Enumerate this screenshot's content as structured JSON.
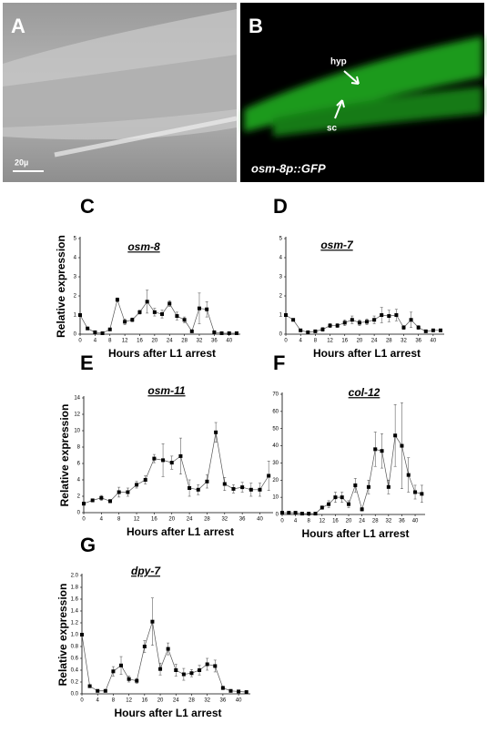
{
  "images": [
    {
      "label": "A",
      "scale_bar": "20µ"
    },
    {
      "label": "B",
      "annotations": [
        "hyp",
        "sc"
      ],
      "caption": "osm-8p::GFP"
    }
  ],
  "chart_data": [
    {
      "type": "line",
      "panel": "C",
      "title": "osm-8",
      "xlabel": "Hours after L1 arrest",
      "ylabel": "Relative expression",
      "color": "#000000",
      "x": [
        0,
        2,
        4,
        6,
        8,
        10,
        12,
        14,
        16,
        18,
        20,
        22,
        24,
        26,
        28,
        30,
        32,
        34,
        36,
        38,
        40,
        42
      ],
      "values": [
        1.0,
        0.3,
        0.1,
        0.05,
        0.25,
        1.8,
        0.65,
        0.75,
        1.15,
        1.7,
        1.15,
        1.05,
        1.6,
        0.95,
        0.75,
        0.15,
        1.35,
        1.3,
        0.1,
        0.05,
        0.05,
        0.05
      ],
      "errors": [
        0,
        0.05,
        0,
        0,
        0.05,
        0.1,
        0.15,
        0.1,
        0.1,
        0.6,
        0.2,
        0.2,
        0.15,
        0.2,
        0.15,
        0.05,
        0.8,
        0.4,
        0.05,
        0,
        0,
        0
      ],
      "xlim": [
        0,
        43
      ],
      "ylim": [
        0,
        5
      ],
      "xticks": [
        0,
        4,
        8,
        12,
        16,
        20,
        24,
        28,
        32,
        36,
        40
      ],
      "yticks": [
        0,
        1,
        2,
        3,
        4,
        5
      ]
    },
    {
      "type": "line",
      "panel": "D",
      "title": "osm-7",
      "xlabel": "Hours after L1 arrest",
      "color": "#000000",
      "x": [
        0,
        2,
        4,
        6,
        8,
        10,
        12,
        14,
        16,
        18,
        20,
        22,
        24,
        26,
        28,
        30,
        32,
        34,
        36,
        38,
        40,
        42
      ],
      "values": [
        1.0,
        0.75,
        0.2,
        0.1,
        0.15,
        0.25,
        0.45,
        0.45,
        0.6,
        0.75,
        0.6,
        0.65,
        0.75,
        1.0,
        0.95,
        1.0,
        0.35,
        0.75,
        0.35,
        0.15,
        0.2,
        0.2
      ],
      "errors": [
        0,
        0.05,
        0.05,
        0.05,
        0.05,
        0.1,
        0.1,
        0.1,
        0.15,
        0.2,
        0.15,
        0.15,
        0.2,
        0.4,
        0.3,
        0.3,
        0.1,
        0.4,
        0.1,
        0.05,
        0.05,
        0.05
      ],
      "xlim": [
        0,
        43
      ],
      "ylim": [
        0,
        5
      ],
      "xticks": [
        0,
        4,
        8,
        12,
        16,
        20,
        24,
        28,
        32,
        36,
        40
      ],
      "yticks": [
        0,
        1,
        2,
        3,
        4,
        5
      ]
    },
    {
      "type": "line",
      "panel": "E",
      "title": "osm-11",
      "xlabel": "Hours after L1 arrest",
      "ylabel": "Relative expression",
      "color": "#000000",
      "x": [
        0,
        2,
        4,
        6,
        8,
        10,
        12,
        14,
        16,
        18,
        20,
        22,
        24,
        26,
        28,
        30,
        32,
        34,
        36,
        38,
        40,
        42
      ],
      "values": [
        1.1,
        1.5,
        1.8,
        1.4,
        2.5,
        2.5,
        3.4,
        4.0,
        6.6,
        6.4,
        6.1,
        6.9,
        3.0,
        2.8,
        3.8,
        9.8,
        3.5,
        2.9,
        3.1,
        2.8,
        2.8,
        4.5
      ],
      "errors": [
        0.2,
        0.2,
        0.3,
        0.2,
        0.6,
        0.5,
        0.4,
        0.5,
        0.5,
        2.0,
        0.8,
        2.2,
        1.0,
        0.6,
        0.8,
        1.2,
        0.8,
        0.5,
        0.6,
        0.8,
        0.8,
        1.8
      ],
      "xlim": [
        0,
        43
      ],
      "ylim": [
        0,
        14
      ],
      "xticks": [
        0,
        4,
        8,
        12,
        16,
        20,
        24,
        28,
        32,
        36,
        40
      ],
      "yticks": [
        0,
        2,
        4,
        6,
        8,
        10,
        12,
        14
      ]
    },
    {
      "type": "line",
      "panel": "F",
      "title": "col-12",
      "xlabel": "Hours after L1 arrest",
      "color": "#000000",
      "x": [
        0,
        2,
        4,
        6,
        8,
        10,
        12,
        14,
        16,
        18,
        20,
        22,
        24,
        26,
        28,
        30,
        32,
        34,
        36,
        38,
        40,
        42
      ],
      "values": [
        1,
        1,
        1,
        0.5,
        0.5,
        0.5,
        4,
        6,
        10,
        10,
        6,
        17,
        3,
        16,
        38,
        37,
        16,
        46,
        40,
        23,
        13,
        12
      ],
      "errors": [
        0.5,
        0.5,
        0.5,
        0.3,
        0.3,
        0.3,
        1,
        2,
        3,
        3,
        2,
        4,
        1,
        4,
        10,
        10,
        4,
        18,
        25,
        10,
        4,
        5
      ],
      "xlim": [
        0,
        43
      ],
      "ylim": [
        0,
        70
      ],
      "xticks": [
        0,
        4,
        8,
        12,
        16,
        20,
        24,
        28,
        32,
        36,
        40
      ],
      "yticks": [
        0,
        10,
        20,
        30,
        40,
        50,
        60,
        70
      ]
    },
    {
      "type": "line",
      "panel": "G",
      "title": "dpy-7",
      "xlabel": "Hours after L1 arrest",
      "ylabel": "Relative expression",
      "color": "#000000",
      "x": [
        0,
        2,
        4,
        6,
        8,
        10,
        12,
        14,
        16,
        18,
        20,
        22,
        24,
        26,
        28,
        30,
        32,
        34,
        36,
        38,
        40,
        42
      ],
      "values": [
        1.0,
        0.13,
        0.05,
        0.05,
        0.38,
        0.48,
        0.25,
        0.22,
        0.8,
        1.22,
        0.42,
        0.76,
        0.4,
        0.33,
        0.35,
        0.4,
        0.5,
        0.47,
        0.1,
        0.05,
        0.04,
        0.03
      ],
      "errors": [
        0,
        0.02,
        0.01,
        0.01,
        0.08,
        0.15,
        0.05,
        0.04,
        0.1,
        0.4,
        0.1,
        0.1,
        0.1,
        0.1,
        0.06,
        0.08,
        0.1,
        0.1,
        0.03,
        0.02,
        0.01,
        0.01
      ],
      "xlim": [
        0,
        43
      ],
      "ylim": [
        0,
        2
      ],
      "xticks": [
        0,
        4,
        8,
        12,
        16,
        20,
        24,
        28,
        32,
        36,
        40
      ],
      "yticks": [
        {
          "value": 0,
          "label": "0.0"
        },
        {
          "value": 0.2,
          "label": "0.2"
        },
        {
          "value": 0.4,
          "label": "0.4"
        },
        {
          "value": 0.6,
          "label": "0.6"
        },
        {
          "value": 0.8,
          "label": "0.8"
        },
        {
          "value": 1,
          "label": "1.0"
        },
        {
          "value": 1.2,
          "label": "1.2"
        },
        {
          "value": 1.4,
          "label": "1.4"
        },
        {
          "value": 1.6,
          "label": "1.6"
        },
        {
          "value": 1.8,
          "label": "1.8"
        },
        {
          "value": 2,
          "label": "2.0"
        }
      ]
    }
  ]
}
